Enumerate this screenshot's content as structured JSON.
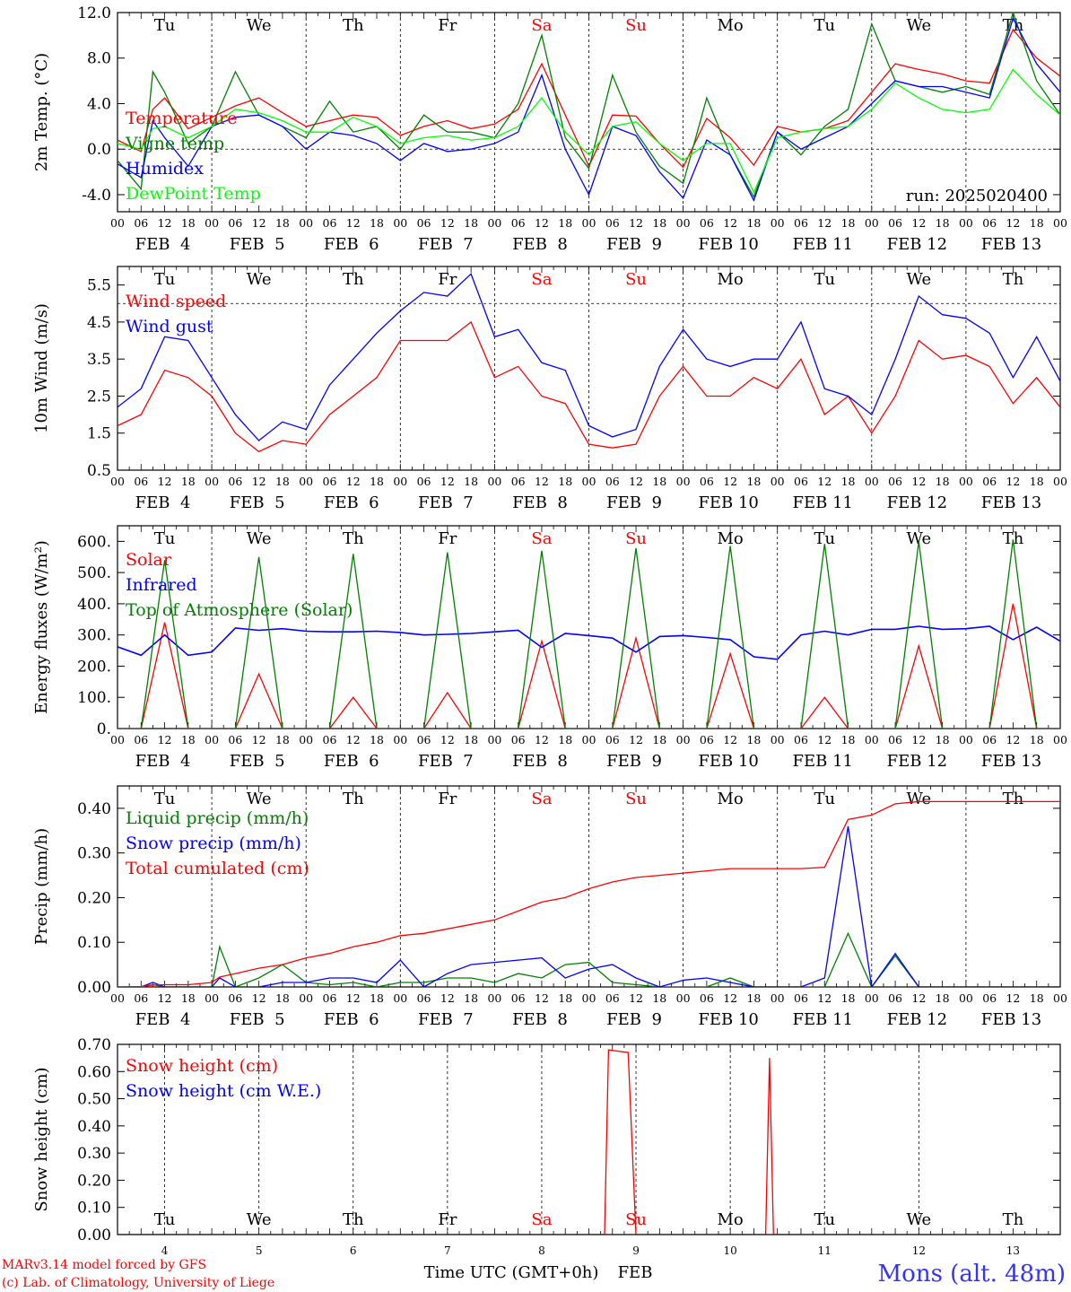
{
  "footer": {
    "credit_line1": "MARv3.14 model forced by GFS",
    "credit_line2": "(c) Lab. of Climatology, University of Liege",
    "location": "Mons (alt. 48m)"
  },
  "colors": {
    "red": "#ff0000",
    "green": "#008000",
    "blue": "#0000ff",
    "lightgreen": "#00ff00",
    "weekend": "#ff0000",
    "location": "#3333ff"
  },
  "days": {
    "dates": [
      "FEB  4",
      "FEB  5",
      "FEB  6",
      "FEB  7",
      "FEB  8",
      "FEB  9",
      "FEB 10",
      "FEB 11",
      "FEB 12",
      "FEB 13"
    ],
    "date_numbers": [
      "4",
      "5",
      "6",
      "7",
      "8",
      "9",
      "10",
      "11",
      "12",
      "13"
    ],
    "weekdays": [
      "Tu",
      "We",
      "Th",
      "Fr",
      "Sa",
      "Su",
      "Mo",
      "Tu",
      "We",
      "Th"
    ],
    "weekend_index": [
      4,
      5
    ],
    "hour_labels": [
      "00",
      "06",
      "12",
      "18"
    ],
    "end_hour_label": "00"
  },
  "chart_data": [
    {
      "type": "line",
      "ylabel": "2m Temp. (°C)",
      "ylim": [
        -5.5,
        12
      ],
      "yticks": [
        "-4.0",
        "0.0",
        "4.0",
        "8.0",
        "12.0"
      ],
      "ytick_values": [
        -4,
        0,
        4,
        8,
        12
      ],
      "ref_line": 0,
      "annotation": "run: 2025020400",
      "x_hours": [
        0,
        6,
        9,
        12,
        18,
        24,
        30,
        36,
        42,
        48,
        54,
        60,
        66,
        72,
        78,
        84,
        90,
        96,
        102,
        108,
        114,
        120,
        126,
        132,
        138,
        144,
        150,
        156,
        162,
        168,
        174,
        180,
        186,
        192,
        198,
        204,
        210,
        216,
        222,
        228,
        234,
        240
      ],
      "series": [
        {
          "name": "Temperature",
          "color": "#ff0000",
          "values": [
            0.8,
            -0.2,
            3.5,
            4.5,
            1.8,
            2.8,
            3.8,
            4.5,
            3.2,
            2.0,
            2.5,
            3.0,
            2.8,
            1.2,
            2.0,
            2.5,
            1.8,
            2.2,
            3.5,
            7.5,
            3.0,
            -1.5,
            3.0,
            2.9,
            0.5,
            -1.6,
            2.7,
            1.0,
            -1.4,
            2.0,
            1.5,
            1.8,
            2.5,
            5.0,
            7.5,
            7.0,
            6.6,
            6.0,
            5.8,
            10.5,
            8.0,
            6.4
          ]
        },
        {
          "name": "Vigne temp",
          "color": "#008000",
          "values": [
            -1.0,
            -3.5,
            6.8,
            5.0,
            0.5,
            2.0,
            6.8,
            3.0,
            2.0,
            1.0,
            4.2,
            1.5,
            2.0,
            0.0,
            3.0,
            1.5,
            1.5,
            1.0,
            4.0,
            10.0,
            1.0,
            -1.7,
            6.5,
            1.5,
            -1.5,
            -3.0,
            4.5,
            -0.5,
            -4.2,
            1.5,
            -0.5,
            2.0,
            3.5,
            11.0,
            6.0,
            5.5,
            5.0,
            5.5,
            4.8,
            12.0,
            6.0,
            3.0
          ]
        },
        {
          "name": "Humidex",
          "color": "#0000ff",
          "values": [
            -1.3,
            -2.5,
            2.5,
            1.0,
            -1.5,
            2.0,
            2.8,
            3.0,
            2.0,
            0.0,
            1.5,
            1.2,
            0.5,
            -1.0,
            0.5,
            -0.2,
            0.0,
            0.5,
            1.5,
            6.5,
            0.0,
            -4.0,
            2.0,
            1.2,
            -2.0,
            -4.3,
            0.8,
            -0.5,
            -4.5,
            1.5,
            0.0,
            1.0,
            2.0,
            4.0,
            6.0,
            5.5,
            5.5,
            5.0,
            4.5,
            11.5,
            7.5,
            5.0
          ]
        },
        {
          "name": "DewPoint Temp",
          "color": "#00ff00",
          "values": [
            0.5,
            0.0,
            1.8,
            2.0,
            1.0,
            2.0,
            3.5,
            3.2,
            2.5,
            1.5,
            1.5,
            2.8,
            2.0,
            0.5,
            1.0,
            1.2,
            0.8,
            1.0,
            2.0,
            4.5,
            1.5,
            -0.5,
            2.0,
            2.4,
            0.5,
            -1.0,
            0.5,
            0.5,
            -3.8,
            1.0,
            1.5,
            1.8,
            2.0,
            3.5,
            5.8,
            4.5,
            3.5,
            3.2,
            3.5,
            7.0,
            4.8,
            3.0
          ]
        }
      ]
    },
    {
      "type": "line",
      "ylabel": "10m Wind (m/s)",
      "ylim": [
        0.5,
        6.0
      ],
      "yticks": [
        "0.5",
        "1.5",
        "2.5",
        "3.5",
        "4.5",
        "5.5"
      ],
      "ytick_values": [
        0.5,
        1.5,
        2.5,
        3.5,
        4.5,
        5.5
      ],
      "ref_line": 5,
      "x_hours": [
        0,
        6,
        12,
        18,
        24,
        30,
        36,
        42,
        48,
        54,
        60,
        66,
        72,
        78,
        84,
        90,
        96,
        102,
        108,
        114,
        120,
        126,
        132,
        138,
        144,
        150,
        156,
        162,
        168,
        174,
        180,
        186,
        192,
        198,
        204,
        210,
        216,
        222,
        228,
        234,
        240
      ],
      "series": [
        {
          "name": "Wind speed",
          "color": "#ff0000",
          "values": [
            1.7,
            2.0,
            3.2,
            3.0,
            2.5,
            1.5,
            1.0,
            1.3,
            1.2,
            2.0,
            2.5,
            3.0,
            4.0,
            4.0,
            4.0,
            4.5,
            3.0,
            3.3,
            2.5,
            2.3,
            1.2,
            1.1,
            1.2,
            2.5,
            3.3,
            2.5,
            2.5,
            3.0,
            2.7,
            3.5,
            2.0,
            2.5,
            1.5,
            2.5,
            4.0,
            3.5,
            3.6,
            3.3,
            2.3,
            3.0,
            2.2
          ]
        },
        {
          "name": "Wind gust",
          "color": "#0000ff",
          "values": [
            2.2,
            2.7,
            4.1,
            4.0,
            3.0,
            2.0,
            1.3,
            1.8,
            1.6,
            2.8,
            3.5,
            4.2,
            4.8,
            5.3,
            5.2,
            5.8,
            4.1,
            4.3,
            3.4,
            3.2,
            1.7,
            1.4,
            1.6,
            3.3,
            4.3,
            3.5,
            3.3,
            3.5,
            3.5,
            4.5,
            2.7,
            2.5,
            2.0,
            3.5,
            5.2,
            4.7,
            4.6,
            4.2,
            3.0,
            4.1,
            2.9
          ]
        }
      ]
    },
    {
      "type": "line",
      "ylabel": "Energy fluxes (W/m²)",
      "ylim": [
        0,
        650
      ],
      "yticks": [
        "0.",
        "100.",
        "200.",
        "300.",
        "400.",
        "500.",
        "600."
      ],
      "ytick_values": [
        0,
        100,
        200,
        300,
        400,
        500,
        600
      ],
      "x_hours": [
        0,
        6,
        12,
        18,
        24,
        30,
        36,
        42,
        48,
        54,
        60,
        66,
        72,
        78,
        84,
        90,
        96,
        102,
        108,
        114,
        120,
        126,
        132,
        138,
        144,
        150,
        156,
        162,
        168,
        174,
        180,
        186,
        192,
        198,
        204,
        210,
        216,
        222,
        228,
        234,
        240
      ],
      "series": [
        {
          "name": "Solar",
          "color": "#ff0000",
          "values": [
            0,
            0,
            340,
            0,
            0,
            0,
            175,
            0,
            0,
            0,
            100,
            0,
            0,
            0,
            115,
            0,
            0,
            0,
            280,
            0,
            0,
            0,
            290,
            0,
            0,
            0,
            240,
            0,
            0,
            0,
            100,
            0,
            0,
            0,
            265,
            0,
            0,
            0,
            400,
            0,
            0
          ]
        },
        {
          "name": "Infrared",
          "color": "#0000ff",
          "values": [
            262,
            235,
            300,
            235,
            245,
            322,
            315,
            320,
            312,
            310,
            310,
            312,
            308,
            300,
            302,
            305,
            310,
            315,
            260,
            305,
            298,
            290,
            245,
            295,
            298,
            292,
            285,
            230,
            222,
            300,
            312,
            300,
            318,
            318,
            328,
            318,
            320,
            328,
            285,
            325,
            280
          ]
        },
        {
          "name": "Top of Atmosphere (Solar)",
          "color": "#008000",
          "values": [
            0,
            0,
            540,
            0,
            0,
            0,
            550,
            0,
            0,
            0,
            560,
            0,
            0,
            0,
            565,
            0,
            0,
            0,
            570,
            0,
            0,
            0,
            578,
            0,
            0,
            0,
            585,
            0,
            0,
            0,
            592,
            0,
            0,
            0,
            600,
            0,
            0,
            0,
            606,
            0,
            0
          ]
        }
      ]
    },
    {
      "type": "line",
      "ylabel": "Precip (mm/h)",
      "ylim": [
        0,
        0.45
      ],
      "yticks": [
        "0.00",
        "0.10",
        "0.20",
        "0.30",
        "0.40"
      ],
      "ytick_values": [
        0,
        0.1,
        0.2,
        0.3,
        0.4
      ],
      "x_hours": [
        0,
        6,
        9,
        12,
        18,
        24,
        26,
        30,
        36,
        42,
        48,
        54,
        60,
        66,
        72,
        78,
        84,
        90,
        96,
        102,
        108,
        114,
        120,
        126,
        132,
        138,
        144,
        150,
        156,
        162,
        168,
        174,
        180,
        186,
        192,
        198,
        204,
        210,
        216,
        222,
        228,
        234,
        240
      ],
      "series": [
        {
          "name": "Liquid precip (mm/h)",
          "color": "#008000",
          "values": [
            0,
            0,
            0.005,
            0,
            0,
            0,
            0.09,
            0,
            0.02,
            0.05,
            0.01,
            0.005,
            0.01,
            0,
            0.01,
            0.01,
            0.02,
            0.02,
            0.01,
            0.03,
            0.02,
            0.05,
            0.055,
            0.01,
            0.005,
            0,
            0,
            0,
            0.02,
            0,
            0,
            0,
            0,
            0.12,
            0,
            0.07,
            0,
            0,
            0,
            0,
            0,
            0,
            0
          ]
        },
        {
          "name": "Snow precip (mm/h)",
          "color": "#0000ff",
          "values": [
            0,
            0,
            0.01,
            0,
            0,
            0,
            0.02,
            0,
            0,
            0.01,
            0.01,
            0.02,
            0.02,
            0.01,
            0.06,
            0,
            0.03,
            0.05,
            0.055,
            0.06,
            0.065,
            0.02,
            0.04,
            0.05,
            0.02,
            0,
            0.015,
            0.02,
            0.01,
            0,
            0,
            0,
            0.02,
            0.36,
            0,
            0.075,
            0,
            0,
            0,
            0,
            0,
            0,
            0
          ]
        },
        {
          "name": "Total cumulated (cm)",
          "color": "#ff0000",
          "values": [
            0,
            0.001,
            0.004,
            0.005,
            0.005,
            0.01,
            0.022,
            0.03,
            0.042,
            0.05,
            0.065,
            0.075,
            0.09,
            0.1,
            0.115,
            0.12,
            0.13,
            0.14,
            0.15,
            0.17,
            0.19,
            0.2,
            0.22,
            0.235,
            0.245,
            0.25,
            0.255,
            0.26,
            0.265,
            0.265,
            0.265,
            0.265,
            0.268,
            0.375,
            0.385,
            0.41,
            0.415,
            0.415,
            0.415,
            0.415,
            0.415,
            0.415,
            0.415
          ]
        }
      ]
    },
    {
      "type": "line",
      "ylabel": "Snow height (cm)",
      "ylim": [
        0,
        0.7
      ],
      "yticks": [
        "0.00",
        "0.10",
        "0.20",
        "0.30",
        "0.40",
        "0.50",
        "0.60",
        "0.70"
      ],
      "ytick_values": [
        0,
        0.1,
        0.2,
        0.3,
        0.4,
        0.5,
        0.6,
        0.7
      ],
      "xlabel": "Time UTC (GMT+0h)",
      "xlabel_unit": "FEB",
      "x_hours": [
        0,
        124,
        125,
        130,
        132,
        165,
        166,
        167,
        240
      ],
      "series": [
        {
          "name": "Snow height (cm)",
          "color": "#ff0000",
          "values": [
            0,
            0,
            0.68,
            0.67,
            0,
            0,
            0.65,
            0,
            0
          ]
        },
        {
          "name": "Snow height (cm W.E.)",
          "color": "#0000ff",
          "values": [
            0,
            0,
            0,
            0,
            0,
            0,
            0,
            0,
            0
          ]
        }
      ]
    }
  ]
}
